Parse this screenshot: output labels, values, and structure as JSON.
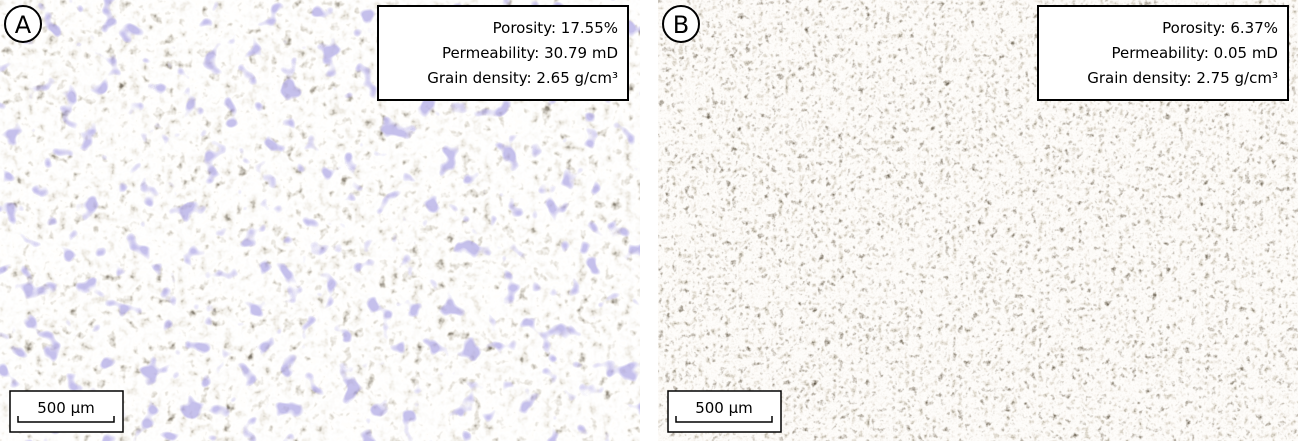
{
  "panels": [
    {
      "label": "A",
      "porosity": "Porosity: 17.55%",
      "permeability": "Permeability: 30.79 mD",
      "grain_density": "Grain density: 2.65 g/cm³",
      "scale_bar": "500 µm"
    },
    {
      "label": "B",
      "porosity": "Porosity: 6.37%",
      "permeability": "Permeability: 0.05 mD",
      "grain_density": "Grain density: 2.75 g/cm³",
      "scale_bar": "500 µm"
    }
  ]
}
